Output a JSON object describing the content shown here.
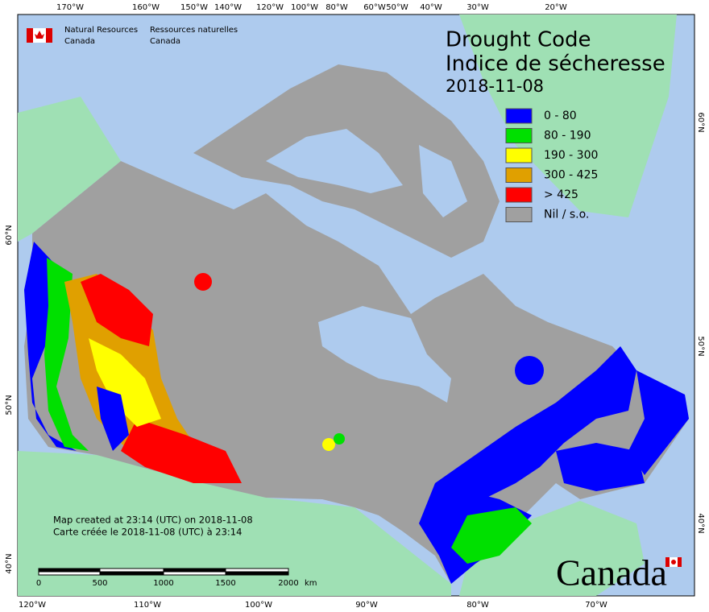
{
  "header": {
    "agency_en": "Natural Resources",
    "country_en": "Canada",
    "agency_fr": "Ressources naturelles",
    "country_fr": "Canada"
  },
  "title": {
    "line1": "Drought Code",
    "line2": "Indice de sécheresse",
    "date": "2018-11-08"
  },
  "legend": [
    {
      "label": "0 - 80",
      "color": "#0000ff"
    },
    {
      "label": "80 - 190",
      "color": "#00e000"
    },
    {
      "label": "190 - 300",
      "color": "#ffff00"
    },
    {
      "label": "300 - 425",
      "color": "#e0a000"
    },
    {
      "label": "> 425",
      "color": "#ff0000"
    },
    {
      "label": "Nil / s.o.",
      "color": "#a0a0a0"
    }
  ],
  "graticule": {
    "top": [
      "170°W",
      "160°W",
      "150°W",
      "140°W",
      "120°W",
      "100°W",
      "80°W",
      "60°W",
      "50°W",
      "40°W",
      "30°W",
      "20°W"
    ],
    "bottom": [
      "120°W",
      "110°W",
      "100°W",
      "90°W",
      "80°W",
      "70°W"
    ],
    "left": [
      "60°N",
      "50°N",
      "40°N"
    ],
    "right": [
      "60°N",
      "50°N",
      "40°N"
    ]
  },
  "credits": [
    "Map created at 23:14 (UTC) on 2018-11-08",
    "Carte créée le 2018-11-08 (UTC) à 23:14"
  ],
  "scale_bar": {
    "labels": [
      "0",
      "500",
      "1000",
      "1500",
      "2000"
    ],
    "unit": "km"
  },
  "wordmark": "Canada"
}
